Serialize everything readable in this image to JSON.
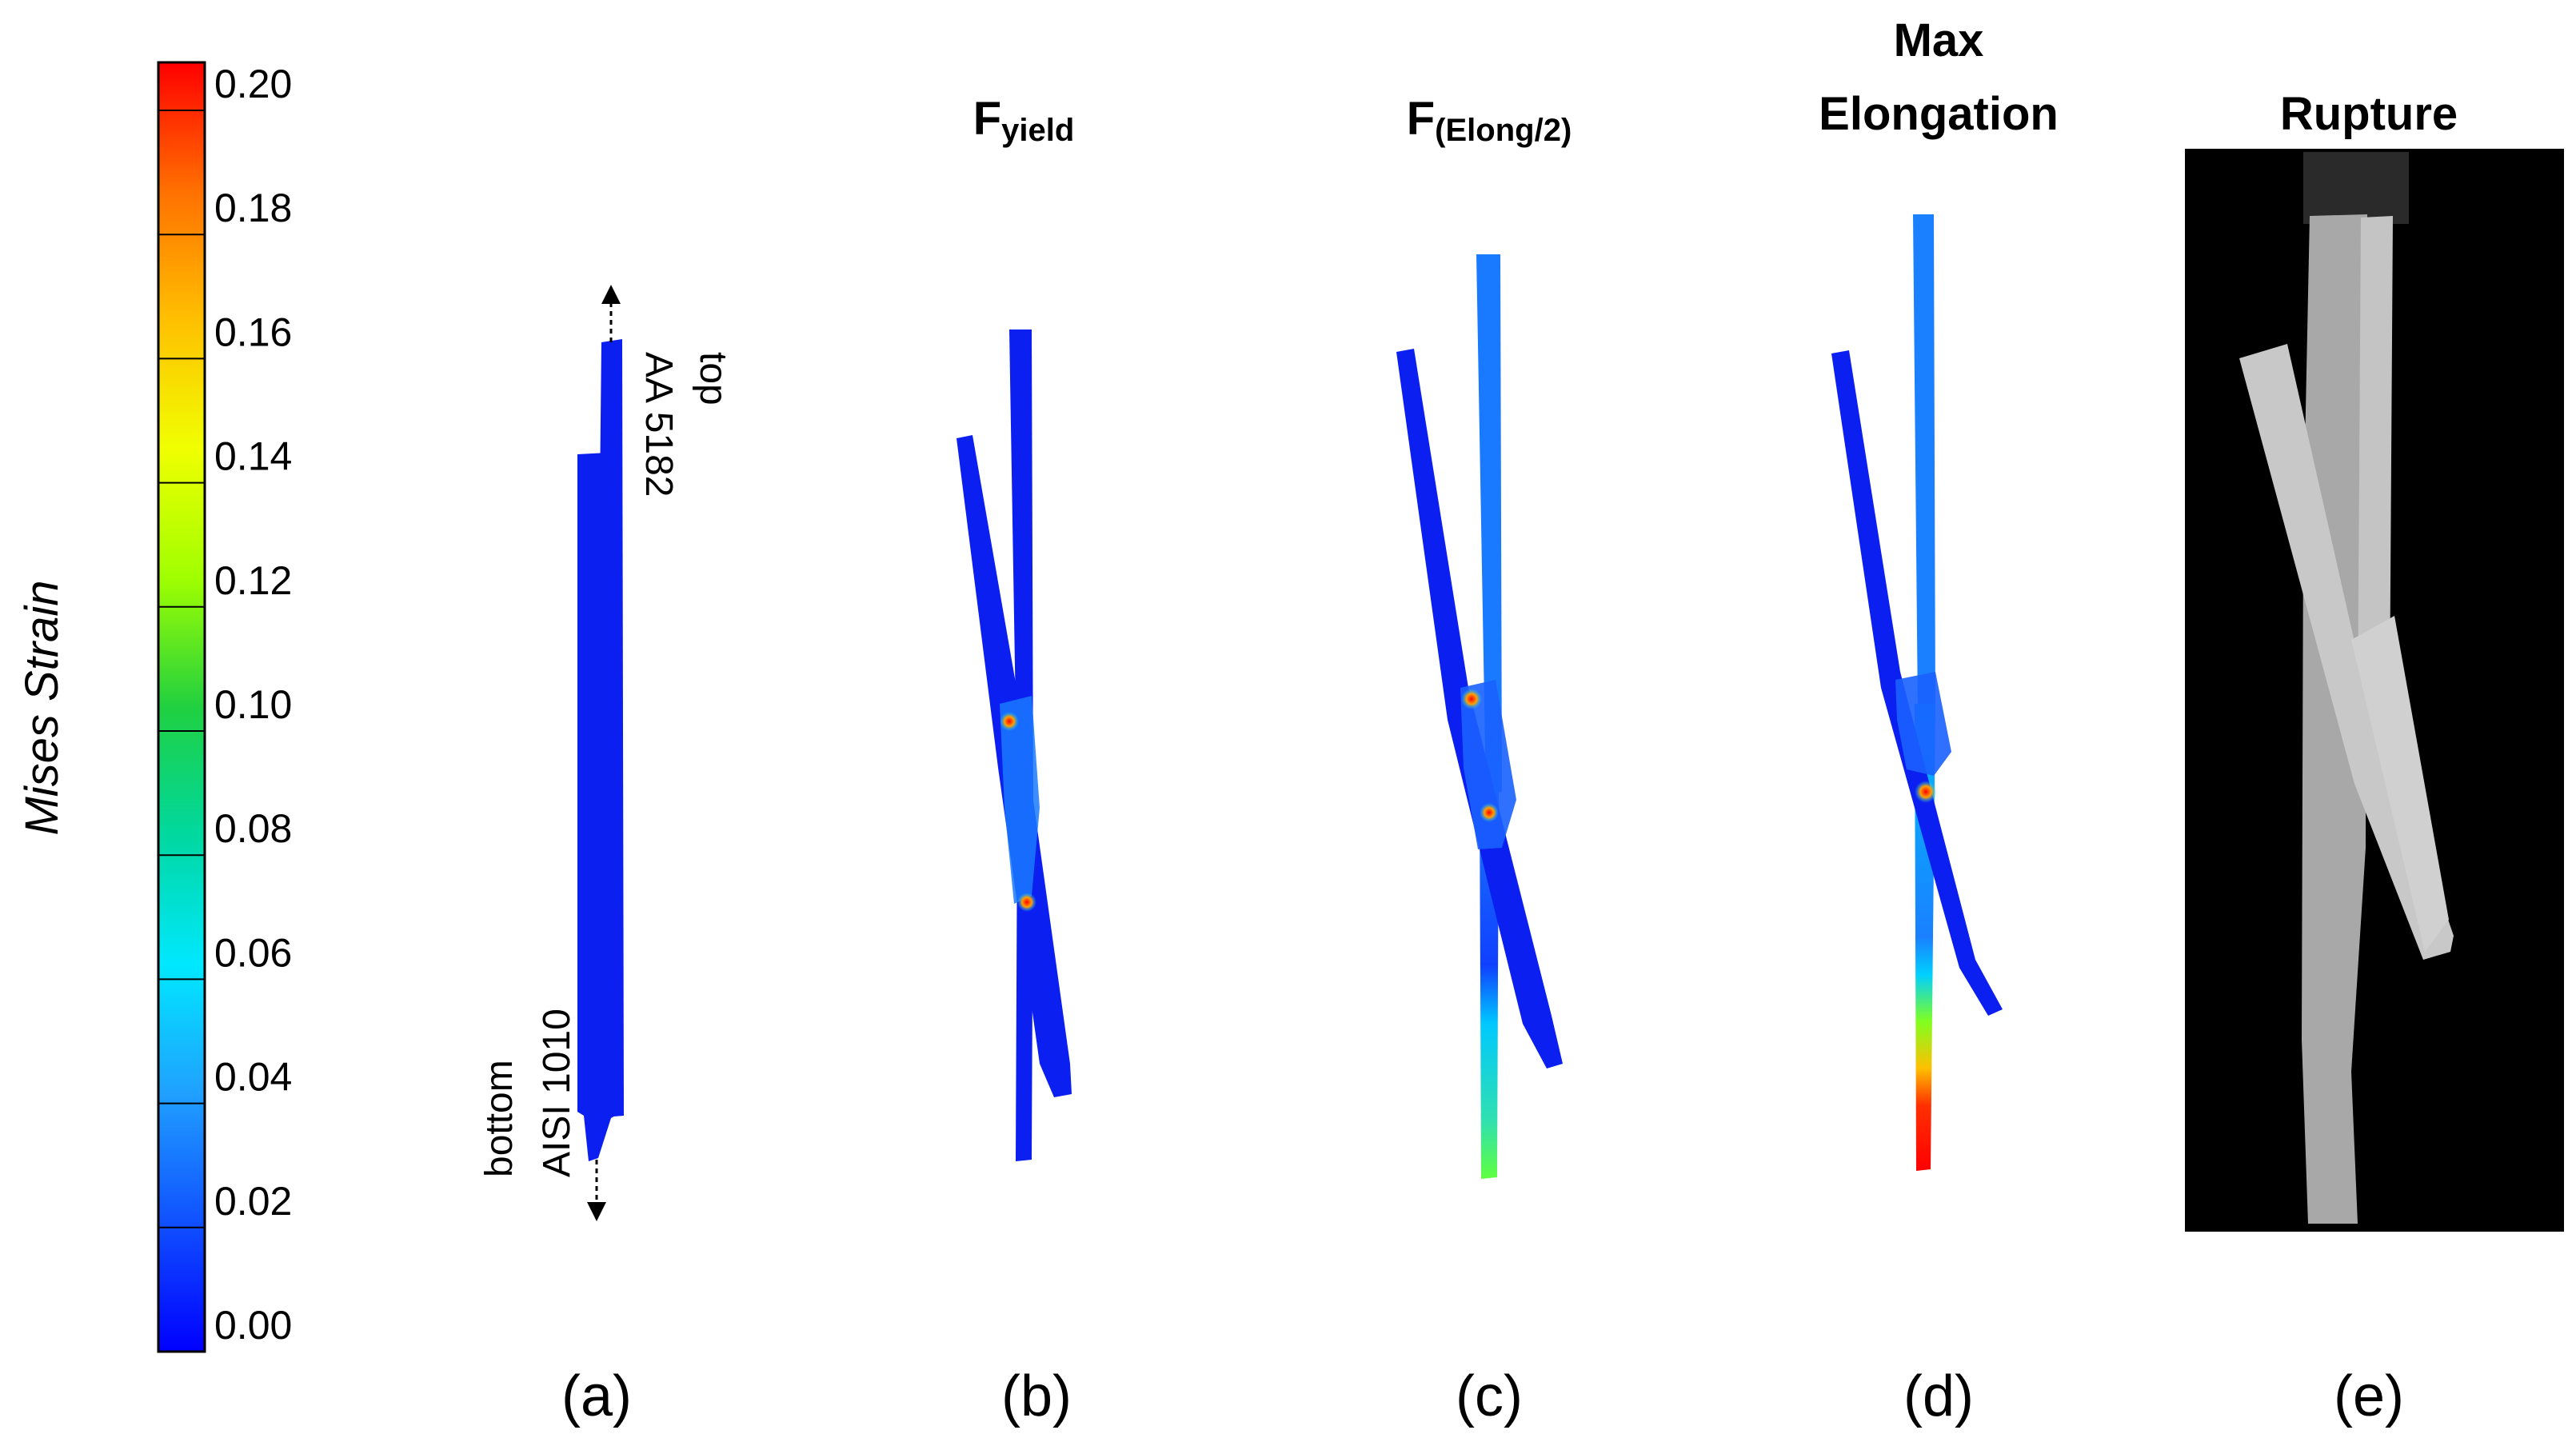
{
  "colorbar": {
    "label": "Mises Strain",
    "ticks": [
      "0.20",
      "0.18",
      "0.16",
      "0.14",
      "0.12",
      "0.10",
      "0.08",
      "0.06",
      "0.04",
      "0.02",
      "0.00"
    ],
    "colors": [
      "#ff0000",
      "#ff7000",
      "#ffc000",
      "#f0ff00",
      "#a0ff00",
      "#20d040",
      "#00d8a0",
      "#00e8ff",
      "#20a0ff",
      "#1050ff",
      "#0000ff"
    ]
  },
  "panels": {
    "a": {
      "label": "(a)",
      "top_material": "AA 5182",
      "top_text": "top",
      "bottom_material": "AISI 1010",
      "bottom_text": "bottom"
    },
    "b": {
      "label": "(b)",
      "title_main": "F",
      "title_sub": "yield"
    },
    "c": {
      "label": "(c)",
      "title_main": "F",
      "title_sub": "(Elong/2)"
    },
    "d": {
      "label": "(d)",
      "title_line1": "Max",
      "title_line2": "Elongation"
    },
    "e": {
      "label": "(e)",
      "title": "Rupture"
    }
  },
  "colors": {
    "strain_low": "#0a1ff0",
    "strain_mid": "#00d8ff",
    "strain_high": "#ff0000",
    "photo_bg": "#000000",
    "photo_sample": "#bdbdbd"
  }
}
